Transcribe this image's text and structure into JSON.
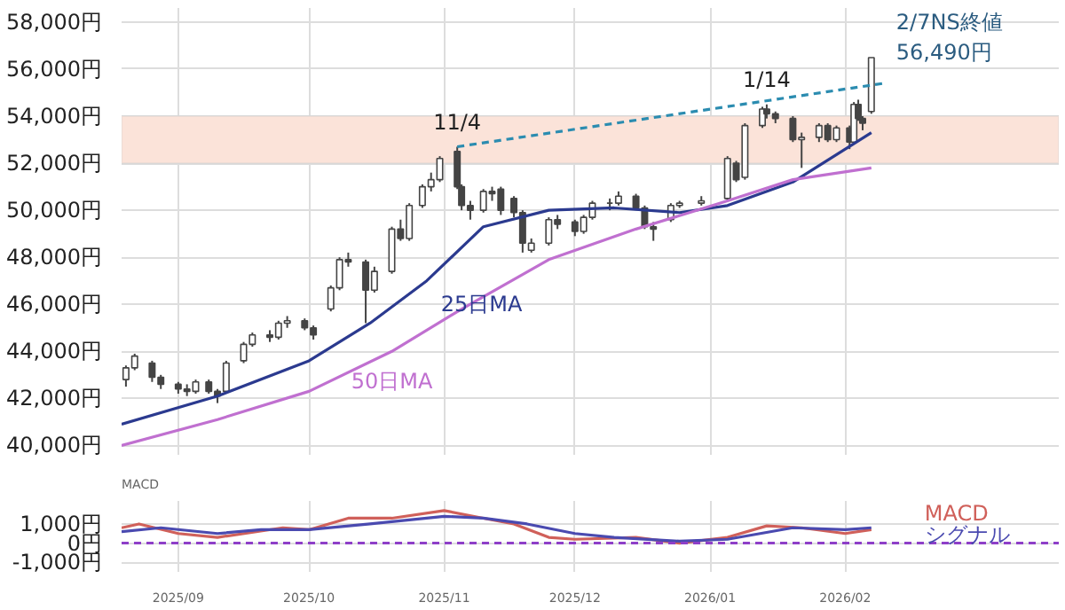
{
  "chart_data": [
    {
      "type": "candlestick",
      "tick_labels": "y",
      "grid": true,
      "x": [
        "2025-08-20",
        "2025-08-22",
        "2025-08-26",
        "2025-08-28",
        "2025-09-01",
        "2025-09-03",
        "2025-09-05",
        "2025-09-08",
        "2025-09-10",
        "2025-09-12",
        "2025-09-16",
        "2025-09-18",
        "2025-09-22",
        "2025-09-24",
        "2025-09-26",
        "2025-09-30",
        "2025-10-02",
        "2025-10-06",
        "2025-10-08",
        "2025-10-10",
        "2025-10-14",
        "2025-10-16",
        "2025-10-20",
        "2025-10-22",
        "2025-10-24",
        "2025-10-27",
        "2025-10-29",
        "2025-10-31",
        "2025-11-04",
        "2025-11-05",
        "2025-11-07",
        "2025-11-10",
        "2025-11-12",
        "2025-11-14",
        "2025-11-17",
        "2025-11-19",
        "2025-11-21",
        "2025-11-25",
        "2025-11-27",
        "2025-12-01",
        "2025-12-03",
        "2025-12-05",
        "2025-12-09",
        "2025-12-11",
        "2025-12-15",
        "2025-12-17",
        "2025-12-19",
        "2025-12-23",
        "2025-12-25",
        "2025-12-30",
        "2026-01-05",
        "2026-01-07",
        "2026-01-09",
        "2026-01-13",
        "2026-01-14",
        "2026-01-16",
        "2026-01-20",
        "2026-01-22",
        "2026-01-26",
        "2026-01-28",
        "2026-01-30",
        "2026-02-02",
        "2026-02-03",
        "2026-02-04",
        "2026-02-05",
        "2026-02-07"
      ],
      "ohlc": [
        [
          42800,
          43400,
          42500,
          43300
        ],
        [
          43300,
          43900,
          43200,
          43800
        ],
        [
          43500,
          43600,
          42700,
          42900
        ],
        [
          42900,
          43000,
          42400,
          42600
        ],
        [
          42600,
          42700,
          42200,
          42400
        ],
        [
          42400,
          42600,
          42100,
          42300
        ],
        [
          42300,
          42800,
          42200,
          42700
        ],
        [
          42700,
          42800,
          42200,
          42300
        ],
        [
          42300,
          42400,
          41800,
          42100
        ],
        [
          42300,
          43600,
          42200,
          43500
        ],
        [
          43600,
          44400,
          43500,
          44300
        ],
        [
          44300,
          44800,
          44200,
          44700
        ],
        [
          44700,
          44900,
          44400,
          44600
        ],
        [
          44600,
          45300,
          44500,
          45200
        ],
        [
          45200,
          45500,
          45000,
          45300
        ],
        [
          45300,
          45400,
          44900,
          45000
        ],
        [
          45000,
          45100,
          44500,
          44700
        ],
        [
          45800,
          46800,
          45700,
          46700
        ],
        [
          46700,
          48000,
          46600,
          47900
        ],
        [
          47900,
          48200,
          47600,
          47800
        ],
        [
          47800,
          47900,
          45200,
          46600
        ],
        [
          46600,
          47600,
          46500,
          47400
        ],
        [
          47400,
          49300,
          47300,
          49200
        ],
        [
          49200,
          49600,
          48700,
          48800
        ],
        [
          48800,
          50300,
          48700,
          50200
        ],
        [
          50200,
          51100,
          50100,
          51000
        ],
        [
          51000,
          51600,
          50800,
          51300
        ],
        [
          51300,
          52300,
          51200,
          52200
        ],
        [
          52500,
          52700,
          50900,
          51000
        ],
        [
          51000,
          51100,
          50000,
          50200
        ],
        [
          50200,
          50400,
          49600,
          50000
        ],
        [
          50000,
          50900,
          49900,
          50800
        ],
        [
          50800,
          51000,
          50400,
          50700
        ],
        [
          50900,
          51000,
          49800,
          50000
        ],
        [
          50500,
          50600,
          49700,
          49900
        ],
        [
          49900,
          50000,
          48200,
          48600
        ],
        [
          48300,
          48800,
          48200,
          48600
        ],
        [
          48600,
          49700,
          48500,
          49600
        ],
        [
          49600,
          49800,
          49200,
          49400
        ],
        [
          49500,
          49600,
          48900,
          49100
        ],
        [
          49100,
          49800,
          49000,
          49700
        ],
        [
          49700,
          50400,
          49600,
          50300
        ],
        [
          50300,
          50500,
          50000,
          50300
        ],
        [
          50300,
          50800,
          50200,
          50600
        ],
        [
          50600,
          50700,
          50000,
          50100
        ],
        [
          50100,
          50200,
          49200,
          49300
        ],
        [
          49300,
          49500,
          48700,
          49200
        ],
        [
          49600,
          50300,
          49500,
          50200
        ],
        [
          50200,
          50400,
          50100,
          50300
        ],
        [
          50300,
          50600,
          50200,
          50400
        ],
        [
          50500,
          52300,
          50400,
          52200
        ],
        [
          52000,
          52100,
          51200,
          51300
        ],
        [
          51400,
          53700,
          51300,
          53600
        ],
        [
          53600,
          54400,
          53500,
          54300
        ],
        [
          54300,
          54500,
          53900,
          54100
        ],
        [
          54100,
          54200,
          53700,
          53900
        ],
        [
          53900,
          54000,
          52900,
          53000
        ],
        [
          53000,
          53300,
          51800,
          53100
        ],
        [
          53100,
          53700,
          52900,
          53600
        ],
        [
          53600,
          53700,
          52900,
          53000
        ],
        [
          53000,
          53600,
          52900,
          53500
        ],
        [
          53500,
          53600,
          52600,
          52900
        ],
        [
          52900,
          54600,
          52800,
          54500
        ],
        [
          54500,
          54700,
          53800,
          53900
        ],
        [
          53900,
          54000,
          53400,
          53700
        ],
        [
          54200,
          56490,
          54100,
          56490
        ]
      ],
      "series": [
        {
          "type": "line",
          "name": "25日MA",
          "color": "#2b3a8f",
          "x": [
            "2025-08-19",
            "2025-09-10",
            "2025-10-01",
            "2025-10-15",
            "2025-10-28",
            "2025-11-10",
            "2025-11-25",
            "2025-12-10",
            "2025-12-25",
            "2026-01-05",
            "2026-01-20",
            "2026-02-07"
          ],
          "values": [
            40900,
            42100,
            43600,
            45200,
            47000,
            49300,
            50000,
            50100,
            49900,
            50200,
            51200,
            53300
          ]
        },
        {
          "type": "line",
          "name": "50日MA",
          "color": "#c070d0",
          "x": [
            "2025-08-19",
            "2025-09-10",
            "2025-10-01",
            "2025-10-20",
            "2025-11-05",
            "2025-11-25",
            "2025-12-15",
            "2026-01-05",
            "2026-01-20",
            "2026-02-07"
          ],
          "values": [
            40000,
            41100,
            42300,
            44000,
            45800,
            47900,
            49200,
            50400,
            51300,
            51800
          ]
        },
        {
          "type": "line",
          "color": "#2b8cb0",
          "line_style": "dashed",
          "x": [
            "2025-11-04",
            "2026-02-10"
          ],
          "values": [
            52700,
            55400
          ]
        }
      ],
      "xlim": [
        "2025-08-19",
        "2026-03-22"
      ],
      "xticks": [
        {
          "value": "2025-09-01",
          "label": null
        },
        {
          "value": "2025-10-01",
          "label": null
        },
        {
          "value": "2025-11-01",
          "label": null
        },
        {
          "value": "2025-12-01",
          "label": null
        },
        {
          "value": "2026-01-01",
          "label": null
        },
        {
          "value": "2026-02-01",
          "label": null
        }
      ],
      "ylim": [
        39600,
        58600
      ],
      "yticks": [
        {
          "value": 40000,
          "label": "40,000円"
        },
        {
          "value": 42000,
          "label": "42,000円"
        },
        {
          "value": 44000,
          "label": "44,000円"
        },
        {
          "value": 46000,
          "label": "46,000円"
        },
        {
          "value": 48000,
          "label": "48,000円"
        },
        {
          "value": 50000,
          "label": "50,000円"
        },
        {
          "value": 52000,
          "label": "52,000円"
        },
        {
          "value": 54000,
          "label": "54,000円"
        },
        {
          "value": 56000,
          "label": "56,000円"
        },
        {
          "value": 58000,
          "label": "58,000円"
        }
      ],
      "bands": [
        {
          "axis": "y",
          "from": 52000,
          "to": 54000,
          "color": "#fbe3d9"
        }
      ],
      "annotations": [
        {
          "text": "11/4",
          "x": "2025-11-04",
          "y": 52700
        },
        {
          "text": "1/14",
          "x": "2026-01-14",
          "y": 54500
        },
        {
          "text": "2/7NS終値\n56,490円",
          "x": "2026-02-07",
          "y": 56490
        }
      ]
    },
    {
      "type": "line",
      "title": "MACD",
      "grid": true,
      "series": [
        {
          "name": "MACD",
          "color": "#d0605a",
          "x": [
            "2025-08-19",
            "2025-08-23",
            "2025-09-01",
            "2025-09-10",
            "2025-09-25",
            "2025-10-01",
            "2025-10-10",
            "2025-10-20",
            "2025-11-01",
            "2025-11-10",
            "2025-11-17",
            "2025-11-25",
            "2025-12-01",
            "2025-12-15",
            "2025-12-25",
            "2026-01-05",
            "2026-01-14",
            "2026-01-22",
            "2026-02-01",
            "2026-02-07"
          ],
          "values": [
            800,
            1000,
            500,
            300,
            800,
            700,
            1300,
            1300,
            1700,
            1300,
            1000,
            300,
            200,
            300,
            0,
            300,
            900,
            800,
            500,
            700
          ]
        },
        {
          "name": "シグナル",
          "color": "#4a4ab0",
          "x": [
            "2025-08-19",
            "2025-08-28",
            "2025-09-10",
            "2025-09-20",
            "2025-10-01",
            "2025-10-15",
            "2025-11-01",
            "2025-11-10",
            "2025-11-20",
            "2025-12-01",
            "2025-12-10",
            "2025-12-25",
            "2026-01-05",
            "2026-01-20",
            "2026-02-01",
            "2026-02-07"
          ],
          "values": [
            600,
            800,
            500,
            700,
            700,
            1000,
            1400,
            1300,
            1000,
            500,
            300,
            100,
            200,
            800,
            700,
            800
          ]
        }
      ],
      "xlim": [
        "2025-08-19",
        "2026-03-22"
      ],
      "xticks": [
        {
          "value": "2025-09-01",
          "label": "2025/09"
        },
        {
          "value": "2025-10-01",
          "label": "2025/10"
        },
        {
          "value": "2025-11-01",
          "label": "2025/11"
        },
        {
          "value": "2025-12-01",
          "label": "2025/12"
        },
        {
          "value": "2026-01-01",
          "label": "2026/01"
        },
        {
          "value": "2026-02-01",
          "label": "2026/02"
        }
      ],
      "ylim": [
        -1500,
        2200
      ],
      "yticks": [
        {
          "value": 1000,
          "label": "1,000円"
        },
        {
          "value": 0,
          "label": "0円"
        },
        {
          "value": -1000,
          "label": "-1,000円"
        }
      ],
      "ref_lines": [
        {
          "axis": "y",
          "value": 0,
          "color": "#8e3fc8",
          "line_style": "dashed"
        }
      ]
    }
  ]
}
